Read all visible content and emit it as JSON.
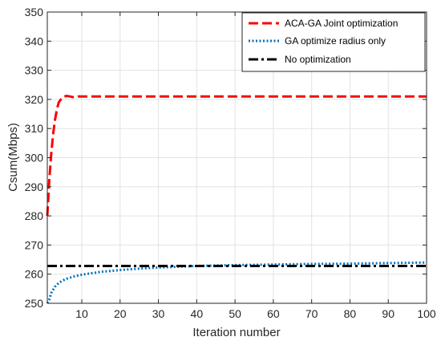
{
  "chart_data": {
    "type": "line",
    "title": "",
    "xlabel": "Iteration number",
    "ylabel": "Csum(Mbps)",
    "xlim": [
      1,
      100
    ],
    "ylim": [
      250,
      350
    ],
    "xticks": [
      10,
      20,
      30,
      40,
      50,
      60,
      70,
      80,
      90,
      100
    ],
    "yticks": [
      250,
      260,
      270,
      280,
      290,
      300,
      310,
      320,
      330,
      340,
      350
    ],
    "grid": true,
    "legend_position": "top-right",
    "series": [
      {
        "name": "ACA-GA Joint optimization",
        "color": "#ff0000",
        "style": "dashed",
        "x": [
          1,
          1.5,
          2,
          2.5,
          3,
          3.5,
          4,
          5,
          6,
          7,
          8,
          9,
          10,
          15,
          20,
          25,
          30,
          40,
          50,
          60,
          70,
          80,
          90,
          100
        ],
        "y": [
          280,
          292,
          301,
          308,
          313,
          316.5,
          319,
          320.8,
          321.2,
          321,
          320.7,
          321,
          321,
          321,
          321,
          321,
          321,
          321,
          321,
          321,
          321,
          321,
          321,
          321
        ]
      },
      {
        "name": "GA optimize radius only",
        "color": "#0072bd",
        "style": "dotted",
        "x": [
          1,
          1.5,
          2,
          3,
          4,
          5,
          6,
          8,
          10,
          15,
          20,
          25,
          30,
          40,
          50,
          60,
          70,
          80,
          90,
          100
        ],
        "y": [
          250,
          251.2,
          253.5,
          255.7,
          257,
          257.8,
          258.4,
          259.2,
          259.8,
          260.8,
          261.4,
          261.9,
          262.3,
          262.8,
          263.1,
          263.3,
          263.5,
          263.6,
          263.8,
          264
        ]
      },
      {
        "name": "No optimization",
        "color": "#000000",
        "style": "dashdot",
        "x": [
          1,
          100
        ],
        "y": [
          262.8,
          262.8
        ]
      }
    ]
  }
}
